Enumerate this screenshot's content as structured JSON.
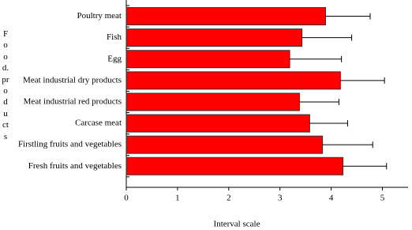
{
  "chart_data": {
    "type": "bar",
    "orientation": "horizontal",
    "x_label": "Interval scale",
    "y_label": "Food.products",
    "categories": [
      "Poultry meat",
      "Fish",
      "Egg",
      "Meat industrial dry products",
      "Meat industrial red products",
      "Carcase meat",
      "Firstling fruits and vegetables",
      "Fresh fruits and vegetables"
    ],
    "values": [
      3.89,
      3.43,
      3.19,
      4.18,
      3.38,
      3.58,
      3.83,
      4.23
    ],
    "errors": [
      0.87,
      0.97,
      1.01,
      0.86,
      0.77,
      0.74,
      0.98,
      0.85
    ],
    "color": "#ff0000",
    "xlim": [
      0,
      5.5
    ],
    "xticks": [
      0,
      1,
      2,
      3,
      4,
      5
    ]
  }
}
